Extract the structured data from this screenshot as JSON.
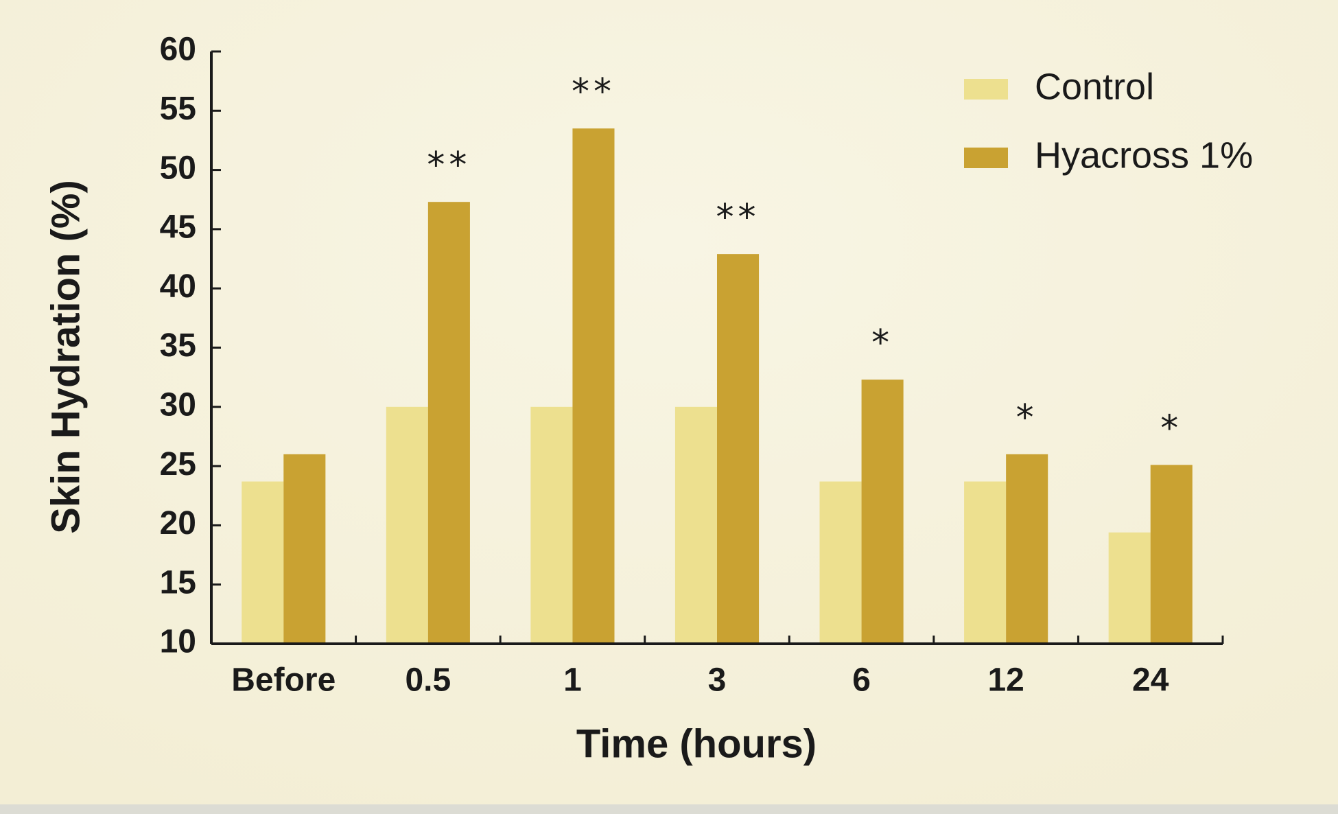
{
  "chart_data": {
    "type": "bar",
    "x_label": "Time (hours)",
    "y_label": "Skin Hydration (%)",
    "categories": [
      "Before",
      "0.5",
      "1",
      "3",
      "6",
      "12",
      "24"
    ],
    "series": [
      {
        "name": "Control",
        "color": "#ede08f",
        "values": [
          23.7,
          30,
          30,
          30,
          23.7,
          23.7,
          19.4
        ]
      },
      {
        "name": "Hyacross 1%",
        "color": "#c9a232",
        "values": [
          26,
          47.3,
          53.5,
          42.9,
          32.3,
          26,
          25.1
        ]
      }
    ],
    "annotations": [
      null,
      "**",
      "**",
      "**",
      "*",
      "*",
      "*"
    ],
    "ylim": [
      10,
      60
    ],
    "yticks": [
      10,
      15,
      20,
      25,
      30,
      35,
      40,
      45,
      50,
      55,
      60
    ],
    "grid": false,
    "legend": "top-right"
  }
}
